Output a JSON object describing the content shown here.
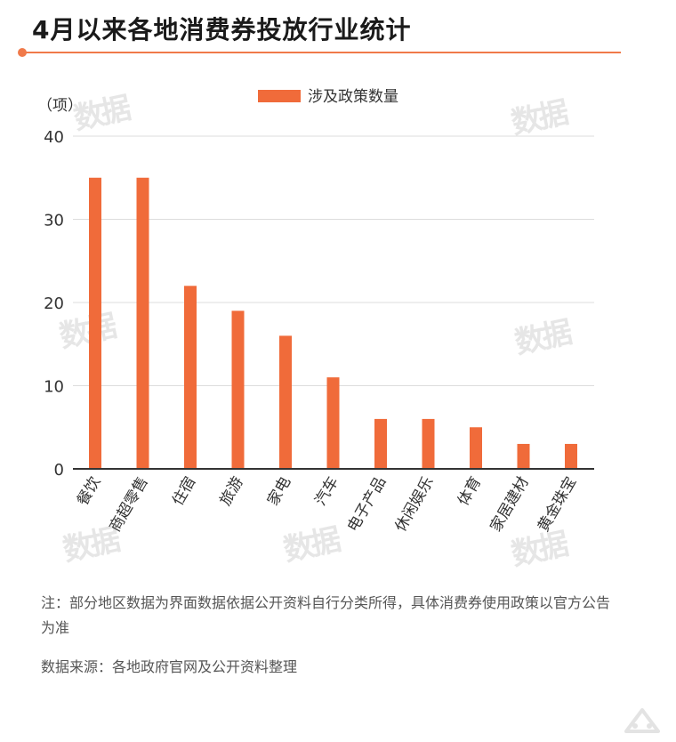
{
  "header": {
    "title": "4月以来各地消费券投放行业统计"
  },
  "watermark_text": "数据",
  "notes": {
    "note": "注：部分地区数据为界面数据依据公开资料自行分类所得，具体消费券使用政策以官方公告为准",
    "source": "数据来源：各地政府官网及公开资料整理"
  },
  "colors": {
    "accent": "#f07a4a",
    "bar": "#f06b3a",
    "grid": "#dddddd",
    "axis": "#333333"
  },
  "chart_data": {
    "type": "bar",
    "unit_label": "（项）",
    "categories": [
      "餐饮",
      "商超零售",
      "住宿",
      "旅游",
      "家电",
      "汽车",
      "电子产品",
      "休闲娱乐",
      "体育",
      "家居建材",
      "黄金珠宝"
    ],
    "series": [
      {
        "name": "涉及政策数量",
        "values": [
          35,
          35,
          22,
          19,
          16,
          11,
          6,
          6,
          5,
          3,
          3
        ]
      }
    ],
    "ylim": [
      0,
      40
    ],
    "yticks": [
      0,
      10,
      20,
      30,
      40
    ],
    "grid": true,
    "legend": "top-center"
  }
}
